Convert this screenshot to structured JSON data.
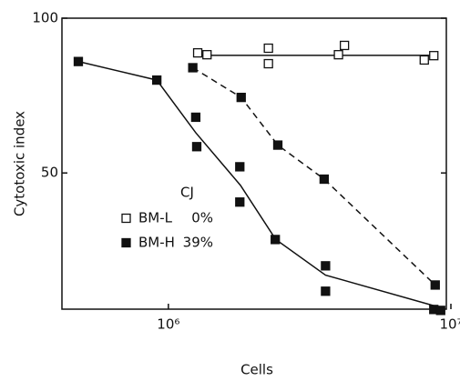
{
  "chart_data": {
    "type": "scatter",
    "xlabel": "Cells",
    "ylabel": "Cytotoxic index",
    "xscale": "log",
    "xlim": [
      420000,
      10000000
    ],
    "xticks": [
      {
        "value": 1000000,
        "label": "10⁶"
      },
      {
        "value": 10000000,
        "label": "10⁷"
      }
    ],
    "ylim": [
      6,
      100
    ],
    "yticks": [
      50,
      100
    ],
    "legend_title": "CJ",
    "series": [
      {
        "name": "BM-L",
        "legend_value": "0%",
        "color": "#111111",
        "marker": "open",
        "x": [
          1270000,
          1370000,
          2260000,
          2260000,
          4000000,
          4200000,
          8050000,
          8700000
        ],
        "values": [
          88.8,
          88.2,
          90.3,
          85.3,
          88.2,
          91.2,
          86.5,
          87.9
        ]
      },
      {
        "name": "BM-H",
        "legend_value": "39%",
        "color": "#111111",
        "marker": "filled",
        "x": [
          480000,
          910000,
          1220000,
          1250000,
          1260000,
          1790000,
          1790000,
          1810000,
          2440000,
          2390000,
          3560000,
          3600000,
          3600000,
          8800000,
          8700000,
          9200000
        ],
        "values": [
          86,
          80,
          84,
          68,
          58.5,
          52,
          40.6,
          74.4,
          59,
          28.5,
          48,
          20,
          11.8,
          13.8,
          5.9,
          5.6
        ]
      }
    ],
    "lines": [
      {
        "style": "solid",
        "color": "#111111",
        "x": [
          1270000,
          8700000
        ],
        "values": [
          88,
          88
        ]
      },
      {
        "style": "solid",
        "color": "#111111",
        "x": [
          480000,
          910000,
          1250000,
          1800000,
          2400000,
          3600000,
          8800000
        ],
        "values": [
          86,
          80,
          63,
          46,
          28.5,
          17,
          7
        ]
      },
      {
        "style": "dashed",
        "color": "#111111",
        "x": [
          1220000,
          1810000,
          2440000,
          3560000,
          8800000
        ],
        "values": [
          84,
          74.4,
          59,
          48,
          13.8
        ]
      }
    ]
  }
}
